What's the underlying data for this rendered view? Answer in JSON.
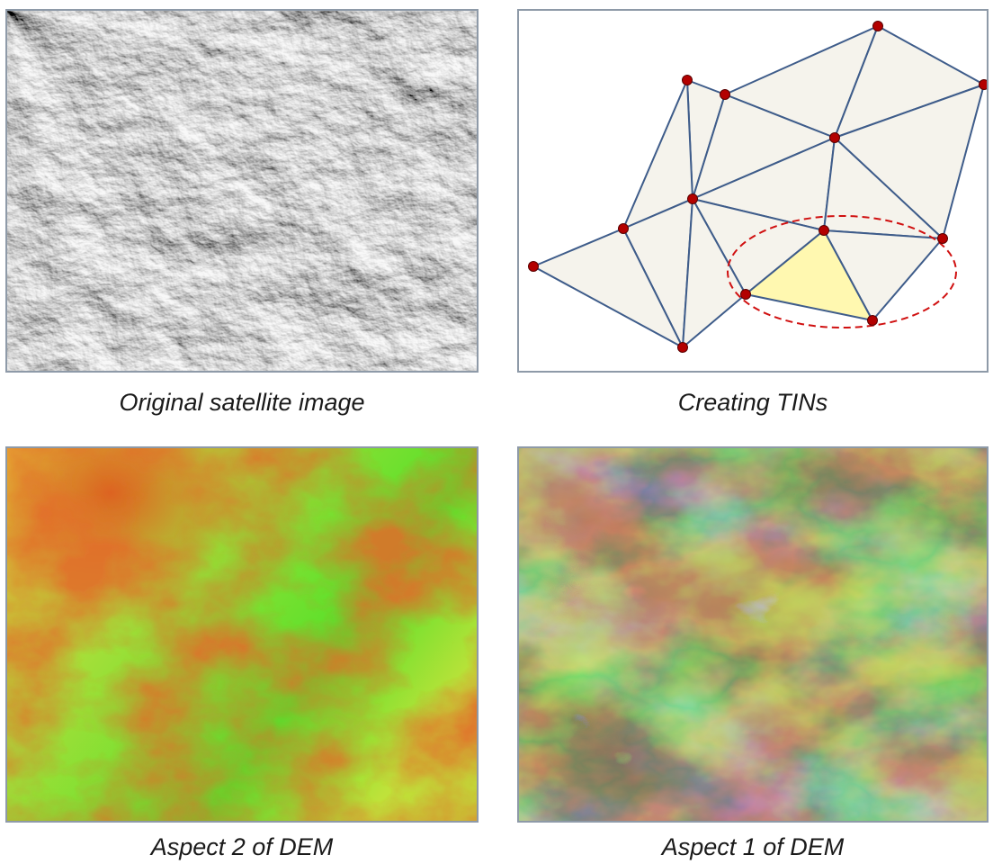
{
  "panels": {
    "satellite": {
      "caption": "Original satellite image"
    },
    "tin": {
      "caption": "Creating TINs"
    },
    "aspect2": {
      "caption": "Aspect 2 of DEM"
    },
    "aspect1": {
      "caption": "Aspect 1 of DEM"
    }
  },
  "colors": {
    "tin_fill": "#f5f3ec",
    "tin_edge": "#3e5c8a",
    "tin_node": "#b30000",
    "tin_highlight": "#fff8b0",
    "tin_ellipse": "#d01010",
    "panel_border": "#8e9aa8"
  }
}
